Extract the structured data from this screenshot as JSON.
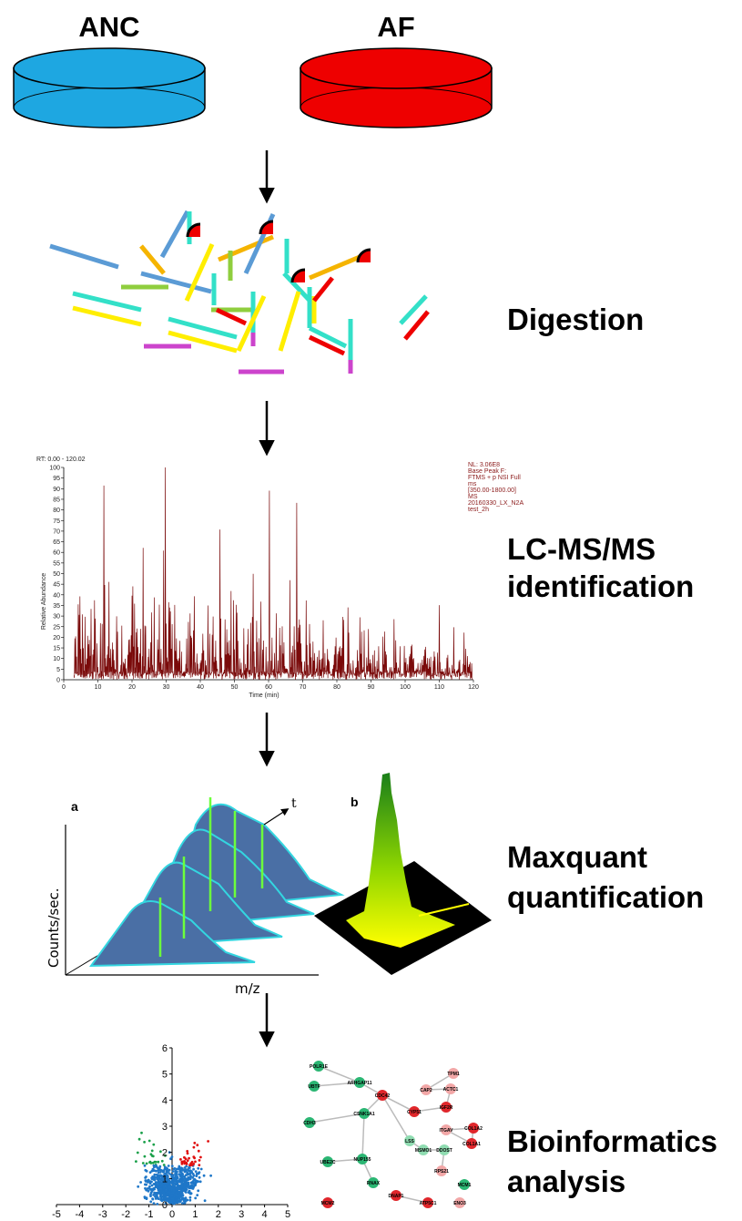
{
  "samples": [
    {
      "label": "ANC",
      "color": "#1ea7e1"
    },
    {
      "label": "AF",
      "color": "#ee0000"
    }
  ],
  "steps": [
    {
      "lines": [
        "Digestion"
      ]
    },
    {
      "lines": [
        "LC-MS/MS",
        "identification"
      ]
    },
    {
      "lines": [
        "Maxquant",
        "quantification"
      ]
    },
    {
      "lines": [
        "Bioinformatics",
        "analysis"
      ]
    }
  ],
  "chromatogram": {
    "rt_label": "RT: 0.00 - 120.02",
    "info": [
      "NL: 3.06E8",
      "Base Peak F:",
      "FTMS + p NSI Full",
      "ms",
      "[350.00-1800.00]",
      "MS",
      "20160330_LX_N2A",
      "test_2h"
    ],
    "y_axis_label": "Relative Abundance",
    "x_axis_label": "Time (min)",
    "xlim": [
      0,
      120
    ],
    "xticks": [
      0,
      10,
      20,
      30,
      40,
      50,
      60,
      70,
      80,
      90,
      100,
      110,
      120
    ],
    "ylim": [
      0,
      100
    ],
    "yticks": [
      0,
      5,
      10,
      15,
      20,
      25,
      30,
      35,
      40,
      45,
      50,
      55,
      60,
      65,
      70,
      75,
      80,
      85,
      90,
      95,
      100
    ]
  },
  "maxquant": {
    "panel_a": "a",
    "panel_b": "b",
    "y_axis_label": "Counts/sec.",
    "x_axis_label": "m/z",
    "time_label": "t"
  },
  "volcano": {
    "xlim": [
      -5,
      5
    ],
    "xticks": [
      -5,
      -4,
      -3,
      -2,
      -1,
      0,
      1,
      2,
      3,
      4,
      5
    ],
    "ylim": [
      0,
      6
    ],
    "yticks": [
      0,
      1,
      2,
      3,
      4,
      5,
      6
    ]
  },
  "network": {
    "nodes": [
      {
        "label": "POLR1E",
        "color": "#2bb673"
      },
      {
        "label": "UBTF",
        "color": "#2bb673"
      },
      {
        "label": "ARHGAP11",
        "color": "#2bb673"
      },
      {
        "label": "CDC42",
        "color": "#e0262b"
      },
      {
        "label": "TPM1",
        "color": "#f2a7a7"
      },
      {
        "label": "CAP2",
        "color": "#f2a7a7"
      },
      {
        "label": "ACTC1",
        "color": "#f2a7a7"
      },
      {
        "label": "IGF2R",
        "color": "#e0262b"
      },
      {
        "label": "CYP51",
        "color": "#e0262b"
      },
      {
        "label": "CSNK1A1",
        "color": "#2bb673"
      },
      {
        "label": "LSS",
        "color": "#8fdcb1"
      },
      {
        "label": "MSMO1",
        "color": "#8fdcb1"
      },
      {
        "label": "DDOST",
        "color": "#8fdcb1"
      },
      {
        "label": "RPS21",
        "color": "#f2a7a7"
      },
      {
        "label": "NUP155",
        "color": "#2bb673"
      },
      {
        "label": "UBE2C",
        "color": "#2bb673"
      },
      {
        "label": "RNAX",
        "color": "#2bb673"
      },
      {
        "label": "ITGAV",
        "color": "#f2a7a7"
      },
      {
        "label": "COL1A2",
        "color": "#e0262b"
      },
      {
        "label": "COL1A1",
        "color": "#e0262b"
      },
      {
        "label": "MCM2",
        "color": "#e0262b"
      },
      {
        "label": "DNAP1",
        "color": "#e0262b"
      },
      {
        "label": "ATP5C1",
        "color": "#e0262b"
      },
      {
        "label": "CDH3",
        "color": "#2bb673"
      },
      {
        "label": "MCM1",
        "color": "#2bb673"
      },
      {
        "label": "ENO3",
        "color": "#f2a7a7"
      }
    ]
  }
}
